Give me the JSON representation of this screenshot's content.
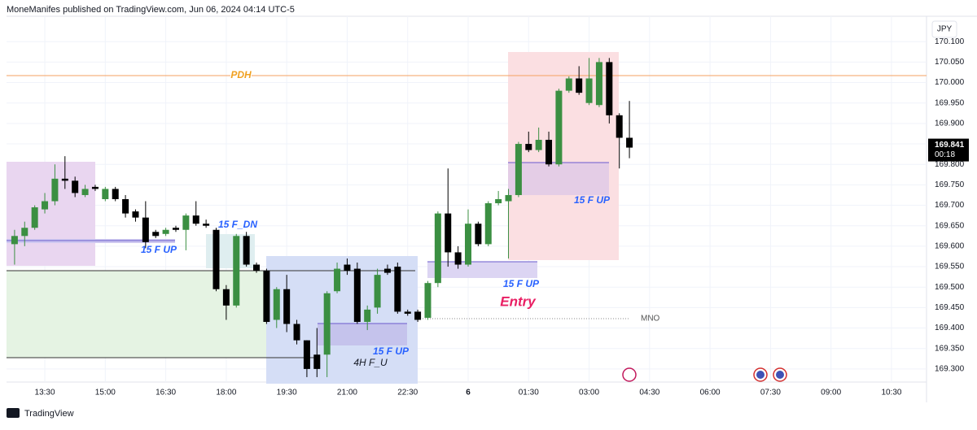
{
  "header": {
    "text": "MoneManifes published on TradingView.com, Jun 06, 2024 04:14 UTC-5"
  },
  "footer": {
    "brand": "TradingView"
  },
  "chart_data": {
    "type": "candlestick",
    "currency": "JPY",
    "up_color": "#3b8f42",
    "down_color": "#000000",
    "categories": [
      null,
      null,
      null,
      "13:30",
      null,
      null,
      null,
      null,
      null,
      "15:00",
      null,
      null,
      null,
      null,
      null,
      "16:30",
      null,
      null,
      null,
      null,
      null,
      "18:00",
      null,
      null,
      null,
      null,
      null,
      "19:30",
      null,
      null,
      null,
      null,
      null,
      "21:00",
      null,
      null,
      null,
      null,
      null,
      "22:30",
      null,
      null,
      null,
      null,
      null,
      "6",
      null,
      null,
      null,
      null,
      null,
      "01:30",
      null,
      null,
      null,
      null,
      null,
      "03:00",
      null,
      null,
      null,
      null,
      null,
      "04:30",
      null,
      null,
      null,
      null,
      null,
      "06:00",
      null,
      null,
      null,
      null,
      null,
      "07:30",
      null,
      null,
      null,
      null,
      null,
      "09:00",
      null,
      null,
      null,
      null,
      null,
      "10:30"
    ],
    "open": [
      169.605,
      169.625,
      169.645,
      169.69,
      169.71,
      169.765,
      169.76,
      169.725,
      169.745,
      169.715,
      169.74,
      169.715,
      169.685,
      169.67,
      169.635,
      169.63,
      169.645,
      169.64,
      169.675,
      169.655,
      169.64,
      169.495,
      169.455,
      169.625,
      169.555,
      169.54,
      169.42,
      169.495,
      169.41,
      169.37,
      169.335,
      169.335,
      169.49,
      169.555,
      169.545,
      169.415,
      169.45,
      169.545,
      169.55,
      169.44,
      169.44,
      169.425,
      169.51,
      169.68,
      169.585,
      169.555,
      169.655,
      169.605,
      169.705,
      169.71,
      169.725,
      169.85,
      169.835,
      169.86,
      169.8,
      169.98,
      170.01,
      169.95,
      169.945,
      170.05,
      169.92,
      169.865,
      null,
      null,
      null,
      null,
      null,
      null,
      null,
      null,
      null,
      null,
      null,
      null,
      null,
      null,
      null,
      null,
      null,
      null,
      null,
      null,
      null,
      null,
      null,
      null,
      null,
      null
    ],
    "high": [
      169.64,
      169.66,
      169.7,
      169.73,
      169.8,
      169.82,
      169.77,
      169.75,
      169.75,
      169.745,
      169.745,
      169.725,
      169.69,
      169.71,
      169.64,
      169.645,
      169.65,
      169.68,
      169.71,
      169.665,
      169.645,
      169.505,
      169.63,
      169.635,
      169.56,
      169.545,
      169.5,
      169.53,
      169.42,
      169.37,
      169.4,
      169.49,
      169.56,
      169.57,
      169.56,
      169.455,
      169.545,
      169.555,
      169.56,
      169.445,
      169.445,
      169.515,
      169.685,
      169.79,
      169.6,
      169.69,
      169.66,
      169.71,
      169.735,
      169.74,
      169.855,
      169.88,
      169.89,
      169.88,
      169.985,
      170.015,
      170.04,
      170.06,
      170.06,
      170.06,
      169.925,
      169.955,
      null,
      null,
      null,
      null,
      null,
      null,
      null,
      null,
      null,
      null,
      null,
      null,
      null,
      null,
      null,
      null,
      null,
      null,
      null,
      null,
      null,
      null,
      null,
      null,
      null,
      null
    ],
    "low": [
      169.555,
      169.6,
      169.64,
      169.68,
      169.7,
      169.74,
      169.72,
      169.72,
      169.735,
      169.71,
      169.71,
      169.67,
      169.66,
      169.595,
      169.62,
      169.625,
      169.635,
      169.59,
      169.65,
      169.645,
      169.49,
      169.42,
      169.45,
      169.55,
      169.535,
      169.41,
      169.4,
      169.39,
      169.36,
      169.28,
      169.28,
      169.28,
      169.485,
      169.53,
      169.41,
      169.395,
      169.435,
      169.53,
      169.435,
      169.43,
      169.415,
      169.42,
      169.5,
      169.55,
      169.545,
      169.55,
      169.6,
      169.6,
      169.7,
      169.57,
      169.72,
      169.83,
      169.83,
      169.795,
      169.795,
      169.975,
      169.97,
      169.945,
      169.94,
      169.9,
      169.79,
      169.815,
      null,
      null,
      null,
      null,
      null,
      null,
      null,
      null,
      null,
      null,
      null,
      null,
      null,
      null,
      null,
      null,
      null,
      null,
      null,
      null,
      null,
      null,
      null,
      null,
      null,
      null
    ],
    "close": [
      169.625,
      169.645,
      169.695,
      169.71,
      169.765,
      169.76,
      169.73,
      169.74,
      169.74,
      169.74,
      169.715,
      169.68,
      169.67,
      169.61,
      169.625,
      169.64,
      169.64,
      169.675,
      169.655,
      169.65,
      169.495,
      169.455,
      169.625,
      169.555,
      169.54,
      169.415,
      169.495,
      169.41,
      169.37,
      169.3,
      169.3,
      169.485,
      169.545,
      169.54,
      169.415,
      169.445,
      169.53,
      169.535,
      169.44,
      169.435,
      169.42,
      169.51,
      169.68,
      169.585,
      169.555,
      169.655,
      169.605,
      169.705,
      169.715,
      169.725,
      169.85,
      169.835,
      169.86,
      169.8,
      169.98,
      170.01,
      169.975,
      170.01,
      170.05,
      169.92,
      169.865,
      169.841,
      null,
      null,
      null,
      null,
      null,
      null,
      null,
      null,
      null,
      null,
      null,
      null,
      null,
      null,
      null,
      null,
      null,
      null,
      null,
      null,
      null,
      null,
      null,
      null,
      null,
      null
    ],
    "last_price": 169.841,
    "countdown": "00:18",
    "ylim": [
      169.268,
      170.162
    ],
    "yticks": [
      {
        "value": 169.3,
        "label": "169.300"
      },
      {
        "value": 169.35,
        "label": "169.350"
      },
      {
        "value": 169.4,
        "label": "169.400"
      },
      {
        "value": 169.45,
        "label": "169.450"
      },
      {
        "value": 169.5,
        "label": "169.500"
      },
      {
        "value": 169.55,
        "label": "169.550"
      },
      {
        "value": 169.6,
        "label": "169.600"
      },
      {
        "value": 169.65,
        "label": "169.650"
      },
      {
        "value": 169.7,
        "label": "169.700"
      },
      {
        "value": 169.75,
        "label": "169.750"
      },
      {
        "value": 169.8,
        "label": "169.800"
      },
      {
        "value": 169.85,
        "label": "169.850"
      },
      {
        "value": 169.9,
        "label": "169.900"
      },
      {
        "value": 169.95,
        "label": "169.950"
      },
      {
        "value": 170.0,
        "label": "170.000"
      },
      {
        "value": 170.05,
        "label": "170.050"
      },
      {
        "value": 170.1,
        "label": "170.100"
      }
    ],
    "grid": true,
    "annotations": [
      "PDH",
      "15 F UP",
      "15 F_DN",
      "15 F UP",
      "4H F_U",
      "15 F UP",
      "15 F UP",
      "Entry",
      "MNO"
    ]
  }
}
